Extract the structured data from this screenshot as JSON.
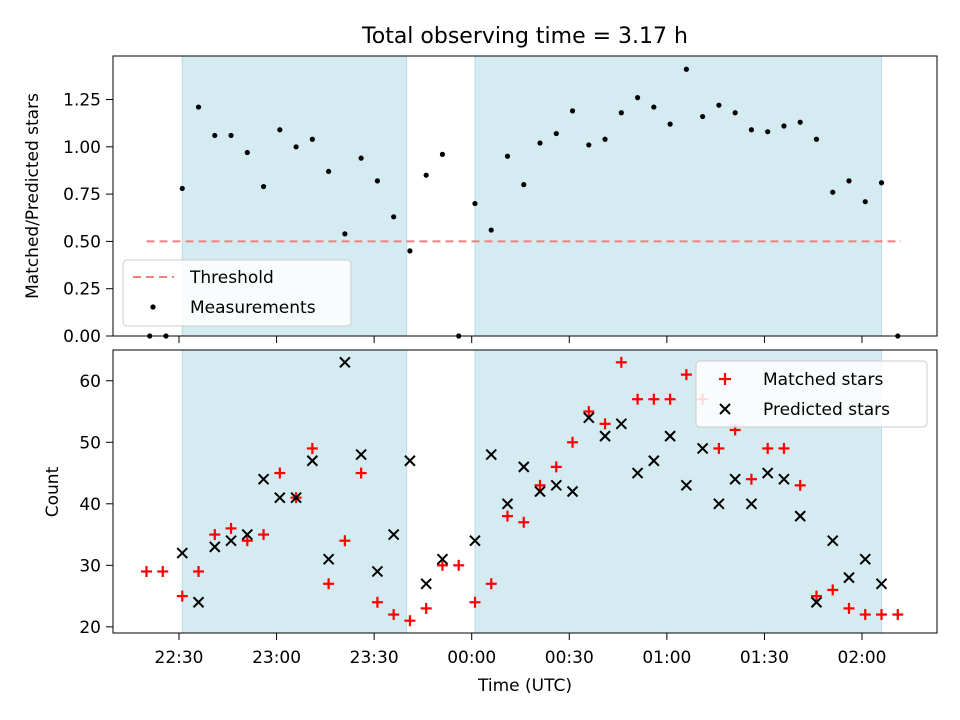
{
  "chart_data": [
    {
      "type": "scatter",
      "title": "Total observing time = 3.17 h",
      "ylabel": "Matched/Predicted stars",
      "xlabel": "",
      "ylim": [
        0,
        1.48
      ],
      "y_ticks": [
        "0.00",
        "0.25",
        "0.50",
        "0.75",
        "1.00",
        "1.25"
      ],
      "x": [
        "22:18",
        "22:24",
        "22:30",
        "22:36",
        "22:42",
        "22:48",
        "22:54",
        "23:00",
        "23:06",
        "23:12",
        "23:18",
        "23:24",
        "23:30",
        "23:36",
        "23:42",
        "23:48",
        "23:54",
        "00:00",
        "00:06",
        "00:12",
        "00:18",
        "00:24",
        "00:30",
        "00:36",
        "00:42",
        "00:48",
        "00:54",
        "01:00",
        "01:06",
        "01:12",
        "01:18",
        "01:24",
        "01:30",
        "01:36",
        "01:42",
        "01:48",
        "01:54",
        "02:00",
        "02:06",
        "02:12",
        "22:27",
        "22:33",
        "22:39",
        "23:57",
        "00:03"
      ],
      "x_ticks": [
        "22:30",
        "23:00",
        "23:30",
        "00:00",
        "00:30",
        "01:00",
        "01:30",
        "02:00"
      ],
      "shaded_ranges": [
        [
          "22:31",
          "23:40"
        ],
        [
          "00:01",
          "02:06"
        ]
      ],
      "series": [
        {
          "name": "Threshold",
          "style": "dashed-line",
          "color": "#f08080",
          "x": [
            "22:20",
            "02:12"
          ],
          "values": [
            0.5,
            0.5
          ]
        },
        {
          "name": "Measurements",
          "style": "dot",
          "color": "#000000",
          "points": [
            [
              "22:21",
              0.0
            ],
            [
              "22:26",
              0.0
            ],
            [
              "22:31",
              0.78
            ],
            [
              "22:36",
              1.21
            ],
            [
              "22:41",
              1.06
            ],
            [
              "22:46",
              1.06
            ],
            [
              "22:51",
              0.97
            ],
            [
              "22:56",
              0.79
            ],
            [
              "23:01",
              1.09
            ],
            [
              "23:06",
              1.0
            ],
            [
              "23:11",
              1.04
            ],
            [
              "23:16",
              0.87
            ],
            [
              "23:21",
              0.54
            ],
            [
              "23:26",
              0.94
            ],
            [
              "23:31",
              0.82
            ],
            [
              "23:36",
              0.63
            ],
            [
              "23:41",
              0.45
            ],
            [
              "23:46",
              0.85
            ],
            [
              "23:51",
              0.96
            ],
            [
              "23:56",
              0.0
            ],
            [
              "00:01",
              0.7
            ],
            [
              "00:06",
              0.56
            ],
            [
              "00:11",
              0.95
            ],
            [
              "00:16",
              0.8
            ],
            [
              "00:21",
              1.02
            ],
            [
              "00:26",
              1.07
            ],
            [
              "00:31",
              1.19
            ],
            [
              "00:36",
              1.01
            ],
            [
              "00:41",
              1.04
            ],
            [
              "00:46",
              1.18
            ],
            [
              "00:51",
              1.26
            ],
            [
              "00:56",
              1.21
            ],
            [
              "01:01",
              1.12
            ],
            [
              "01:06",
              1.41
            ],
            [
              "01:11",
              1.16
            ],
            [
              "01:16",
              1.22
            ],
            [
              "01:21",
              1.18
            ],
            [
              "01:26",
              1.09
            ],
            [
              "01:31",
              1.08
            ],
            [
              "01:36",
              1.11
            ],
            [
              "01:41",
              1.13
            ],
            [
              "01:46",
              1.04
            ],
            [
              "01:51",
              0.76
            ],
            [
              "01:56",
              0.82
            ],
            [
              "02:01",
              0.71
            ],
            [
              "02:06",
              0.81
            ],
            [
              "02:11",
              0.0
            ]
          ]
        }
      ],
      "legend": "lower-left"
    },
    {
      "type": "scatter",
      "title": "",
      "ylabel": "Count",
      "xlabel": "Time (UTC)",
      "ylim": [
        19,
        65
      ],
      "y_ticks": [
        "20",
        "30",
        "40",
        "50",
        "60"
      ],
      "x_ticks": [
        "22:30",
        "23:00",
        "23:30",
        "00:00",
        "00:30",
        "01:00",
        "01:30",
        "02:00"
      ],
      "shaded_ranges": [
        [
          "22:31",
          "23:40"
        ],
        [
          "00:01",
          "02:06"
        ]
      ],
      "series": [
        {
          "name": "Matched stars",
          "marker": "plus",
          "color": "#ff0000",
          "points": [
            [
              "22:20",
              29
            ],
            [
              "22:25",
              29
            ],
            [
              "22:31",
              25
            ],
            [
              "22:36",
              29
            ],
            [
              "22:41",
              35
            ],
            [
              "22:46",
              36
            ],
            [
              "22:51",
              34
            ],
            [
              "22:56",
              35
            ],
            [
              "23:01",
              45
            ],
            [
              "23:06",
              41
            ],
            [
              "23:11",
              49
            ],
            [
              "23:16",
              27
            ],
            [
              "23:21",
              34
            ],
            [
              "23:26",
              45
            ],
            [
              "23:31",
              24
            ],
            [
              "23:36",
              22
            ],
            [
              "23:41",
              21
            ],
            [
              "23:46",
              23
            ],
            [
              "23:51",
              30
            ],
            [
              "23:56",
              30
            ],
            [
              "00:01",
              24
            ],
            [
              "00:06",
              27
            ],
            [
              "00:11",
              38
            ],
            [
              "00:16",
              37
            ],
            [
              "00:21",
              43
            ],
            [
              "00:26",
              46
            ],
            [
              "00:31",
              50
            ],
            [
              "00:36",
              55
            ],
            [
              "00:41",
              53
            ],
            [
              "00:46",
              63
            ],
            [
              "00:51",
              57
            ],
            [
              "00:56",
              57
            ],
            [
              "01:01",
              57
            ],
            [
              "01:06",
              61
            ],
            [
              "01:11",
              57
            ],
            [
              "01:16",
              49
            ],
            [
              "01:21",
              52
            ],
            [
              "01:26",
              44
            ],
            [
              "01:31",
              49
            ],
            [
              "01:36",
              49
            ],
            [
              "01:41",
              43
            ],
            [
              "01:46",
              25
            ],
            [
              "01:51",
              26
            ],
            [
              "01:56",
              23
            ],
            [
              "02:01",
              22
            ],
            [
              "02:06",
              22
            ],
            [
              "02:11",
              22
            ]
          ]
        },
        {
          "name": "Predicted stars",
          "marker": "cross",
          "color": "#000000",
          "points": [
            [
              "22:31",
              32
            ],
            [
              "22:36",
              24
            ],
            [
              "22:41",
              33
            ],
            [
              "22:46",
              34
            ],
            [
              "22:51",
              35
            ],
            [
              "22:56",
              44
            ],
            [
              "23:01",
              41
            ],
            [
              "23:06",
              41
            ],
            [
              "23:11",
              47
            ],
            [
              "23:16",
              31
            ],
            [
              "23:21",
              63
            ],
            [
              "23:26",
              48
            ],
            [
              "23:31",
              29
            ],
            [
              "23:36",
              35
            ],
            [
              "23:41",
              47
            ],
            [
              "23:46",
              27
            ],
            [
              "23:51",
              31
            ],
            [
              "00:01",
              34
            ],
            [
              "00:06",
              48
            ],
            [
              "00:11",
              40
            ],
            [
              "00:16",
              46
            ],
            [
              "00:21",
              42
            ],
            [
              "00:26",
              43
            ],
            [
              "00:31",
              42
            ],
            [
              "00:36",
              54
            ],
            [
              "00:41",
              51
            ],
            [
              "00:46",
              53
            ],
            [
              "00:51",
              45
            ],
            [
              "00:56",
              47
            ],
            [
              "01:01",
              51
            ],
            [
              "01:06",
              43
            ],
            [
              "01:11",
              49
            ],
            [
              "01:16",
              40
            ],
            [
              "01:21",
              44
            ],
            [
              "01:26",
              40
            ],
            [
              "01:31",
              45
            ],
            [
              "01:36",
              44
            ],
            [
              "01:41",
              38
            ],
            [
              "01:46",
              24
            ],
            [
              "01:51",
              34
            ],
            [
              "01:56",
              28
            ],
            [
              "02:01",
              31
            ],
            [
              "02:06",
              27
            ]
          ]
        }
      ],
      "legend": "top-right"
    }
  ],
  "colors": {
    "shade": "#d4ebf1",
    "shade_edge": "#b9dde7",
    "threshold": "#f08080",
    "matched": "#ff0000",
    "predicted": "#000000"
  }
}
